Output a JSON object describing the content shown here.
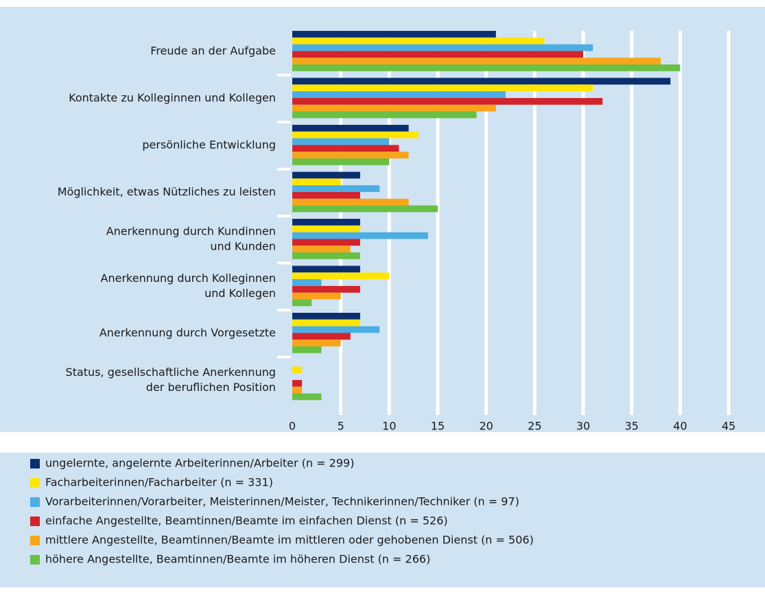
{
  "chart_data": {
    "type": "bar",
    "orientation": "horizontal",
    "categories": [
      "Freude an der Aufgabe",
      "Kontakte zu Kolleginnen und Kollegen",
      "persönliche Entwicklung",
      "Möglichkeit, etwas Nützliches zu leisten",
      "Anerkennung durch Kundinnen\nund Kunden",
      "Anerkennung durch Kolleginnen\nund Kollegen",
      "Anerkennung durch Vorgesetzte",
      "Status, gesellschaftliche Anerkennung\nder beruflichen Position"
    ],
    "series": [
      {
        "name": "ungelernte, angelernte Arbeiterinnen/Arbeiter (n = 299)",
        "color": "#0b2f6e",
        "values": [
          21,
          39,
          12,
          7,
          7,
          7,
          7,
          0
        ]
      },
      {
        "name": "Facharbeiterinnen/Facharbeiter (n = 331)",
        "color": "#ffe500",
        "values": [
          26,
          31,
          13,
          5,
          7,
          10,
          7,
          1
        ]
      },
      {
        "name": "Vorarbeiterinnen/Vorarbeiter, Meisterinnen/Meister, Technikerinnen/Techniker (n = 97)",
        "color": "#4cade3",
        "values": [
          31,
          22,
          10,
          9,
          14,
          3,
          9,
          0
        ]
      },
      {
        "name": "einfache Angestellte, Beamtinnen/Beamte im einfachen Dienst (n = 526)",
        "color": "#d3232b",
        "values": [
          30,
          32,
          11,
          7,
          7,
          7,
          6,
          1
        ]
      },
      {
        "name": "mittlere Angestellte, Beamtinnen/Beamte im mittleren oder gehobenen Dienst (n = 506)",
        "color": "#f8a51b",
        "values": [
          38,
          21,
          12,
          12,
          6,
          5,
          5,
          1
        ]
      },
      {
        "name": "höhere Angestellte, Beamtinnen/Beamte im höheren Dienst (n = 266)",
        "color": "#6abf45",
        "values": [
          40,
          19,
          10,
          15,
          7,
          2,
          3,
          3
        ]
      }
    ],
    "xlim": [
      0,
      45
    ],
    "xticks": [
      0,
      5,
      10,
      15,
      20,
      25,
      30,
      35,
      40,
      45
    ],
    "grid": true
  }
}
